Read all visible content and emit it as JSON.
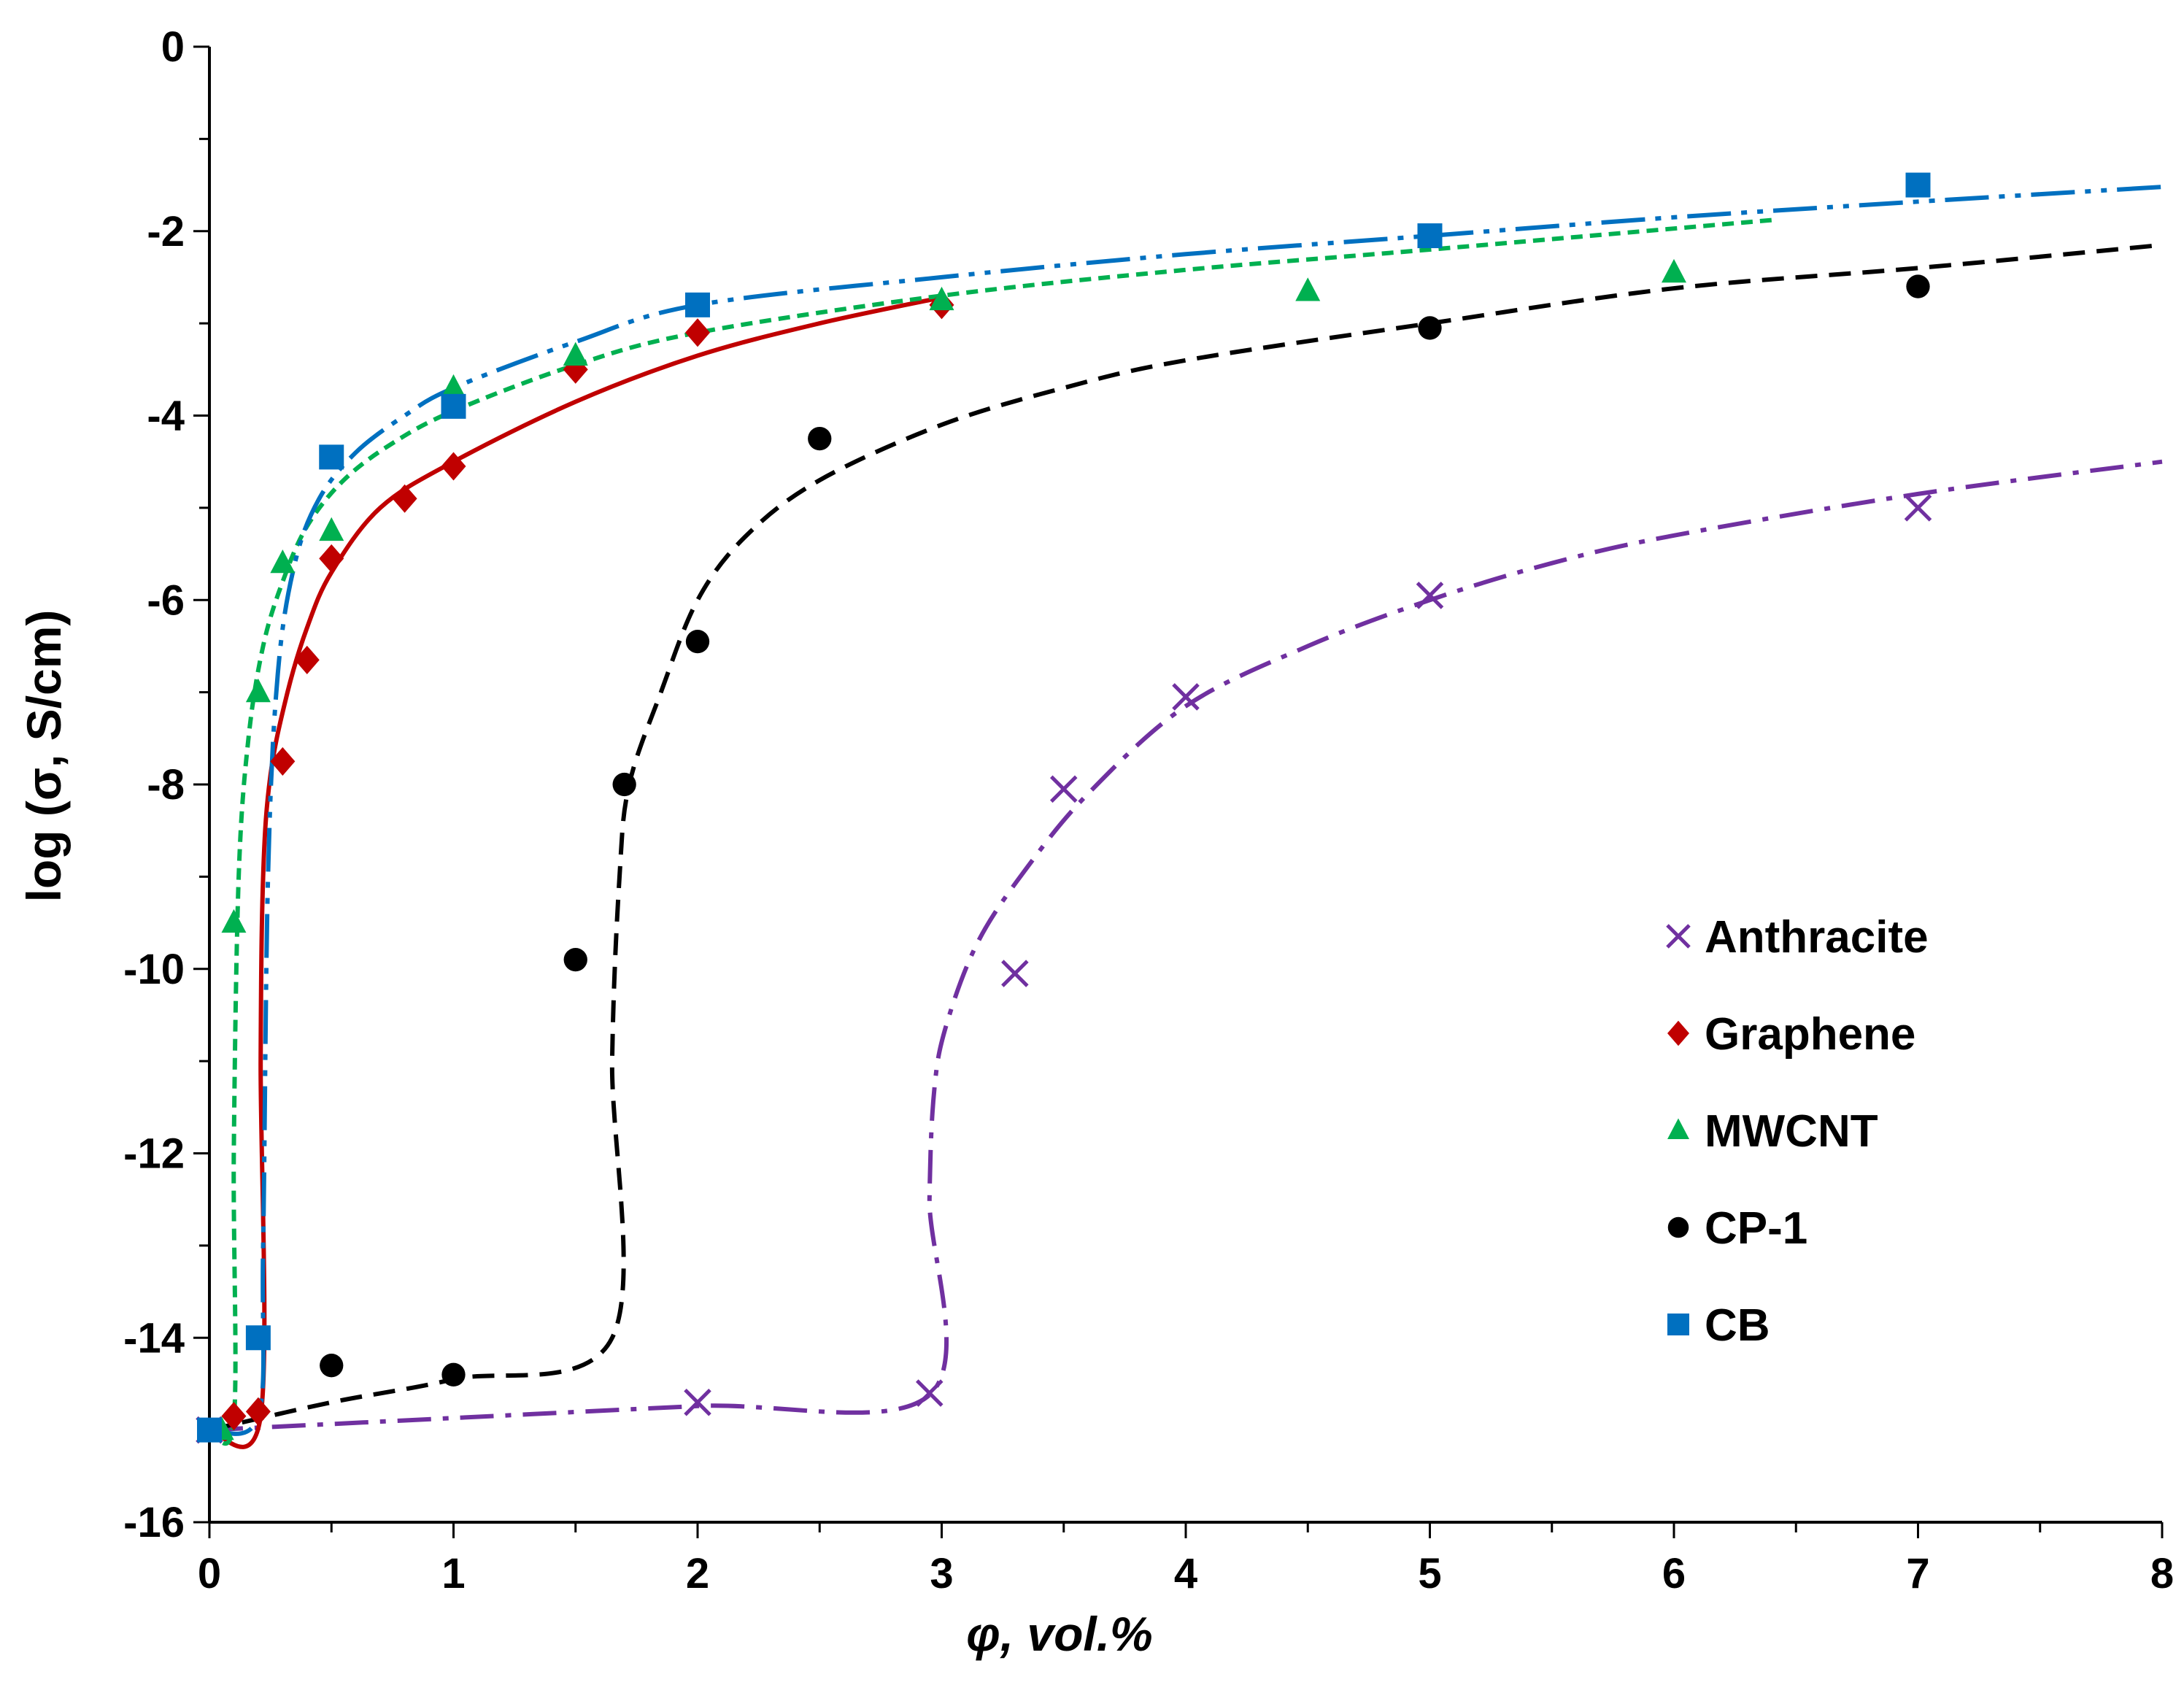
{
  "chart_data": {
    "type": "scatter",
    "title": "",
    "xlabel": "φ, vol.%",
    "ylabel": "log (σ, S/cm)",
    "xlim": [
      0,
      8
    ],
    "ylim": [
      -16,
      0
    ],
    "x_ticks": [
      "0",
      "1",
      "2",
      "3",
      "4",
      "5",
      "6",
      "7",
      "8"
    ],
    "y_ticks": [
      "0",
      "-2",
      "-4",
      "-6",
      "-8",
      "-10",
      "-12",
      "-14",
      "-16"
    ],
    "grid": false,
    "legend_position": "right-middle",
    "series": [
      {
        "name": "Anthracite",
        "marker": "x",
        "color": "#7030A0",
        "line_style": "dash-dot",
        "points": [
          [
            0,
            -15.0
          ],
          [
            2,
            -14.7
          ],
          [
            2.95,
            -14.6
          ],
          [
            3.3,
            -10.05
          ],
          [
            3.5,
            -8.05
          ],
          [
            4,
            -7.05
          ],
          [
            5,
            -5.95
          ],
          [
            7,
            -5.0
          ]
        ],
        "fit": [
          [
            0,
            -15.0
          ],
          [
            1,
            -14.87
          ],
          [
            2,
            -14.74
          ],
          [
            2.95,
            -14.62
          ],
          [
            2.95,
            -12.5
          ],
          [
            2.97,
            -11.3
          ],
          [
            3.02,
            -10.6
          ],
          [
            3.15,
            -9.7
          ],
          [
            3.35,
            -8.9
          ],
          [
            3.6,
            -8.1
          ],
          [
            4,
            -7.15
          ],
          [
            4.5,
            -6.5
          ],
          [
            5,
            -6.0
          ],
          [
            5.5,
            -5.6
          ],
          [
            6,
            -5.3
          ],
          [
            7,
            -4.85
          ],
          [
            8,
            -4.5
          ]
        ]
      },
      {
        "name": "Graphene",
        "marker": "diamond",
        "color": "#C00000",
        "line_style": "solid",
        "points": [
          [
            0.1,
            -14.85
          ],
          [
            0.2,
            -14.8
          ],
          [
            0.3,
            -7.75
          ],
          [
            0.4,
            -6.65
          ],
          [
            0.5,
            -5.55
          ],
          [
            0.8,
            -4.9
          ],
          [
            1,
            -4.55
          ],
          [
            1.5,
            -3.5
          ],
          [
            2,
            -3.1
          ],
          [
            3,
            -2.8
          ]
        ],
        "fit": [
          [
            0,
            -15.0
          ],
          [
            0.21,
            -14.85
          ],
          [
            0.21,
            -11.0
          ],
          [
            0.22,
            -9.0
          ],
          [
            0.25,
            -7.9
          ],
          [
            0.32,
            -7.0
          ],
          [
            0.4,
            -6.3
          ],
          [
            0.5,
            -5.7
          ],
          [
            0.7,
            -5.0
          ],
          [
            1,
            -4.5
          ],
          [
            1.5,
            -3.85
          ],
          [
            2,
            -3.35
          ],
          [
            2.5,
            -3.0
          ],
          [
            3,
            -2.72
          ]
        ]
      },
      {
        "name": "MWCNT",
        "marker": "triangle",
        "color": "#00B050",
        "line_style": "short-dash",
        "points": [
          [
            0.05,
            -15.0
          ],
          [
            0.1,
            -9.5
          ],
          [
            0.2,
            -7.0
          ],
          [
            0.3,
            -5.6
          ],
          [
            0.5,
            -5.25
          ],
          [
            1,
            -3.7
          ],
          [
            1.5,
            -3.35
          ],
          [
            3,
            -2.75
          ],
          [
            4.5,
            -2.65
          ],
          [
            6,
            -2.45
          ]
        ],
        "fit": [
          [
            0,
            -15.0
          ],
          [
            0.1,
            -14.9
          ],
          [
            0.1,
            -12.0
          ],
          [
            0.12,
            -9.0
          ],
          [
            0.16,
            -7.5
          ],
          [
            0.22,
            -6.5
          ],
          [
            0.3,
            -5.8
          ],
          [
            0.4,
            -5.2
          ],
          [
            0.55,
            -4.7
          ],
          [
            0.75,
            -4.3
          ],
          [
            1,
            -3.95
          ],
          [
            1.5,
            -3.45
          ],
          [
            2,
            -3.1
          ],
          [
            3,
            -2.7
          ],
          [
            4,
            -2.42
          ],
          [
            5,
            -2.2
          ],
          [
            6.4,
            -1.88
          ]
        ]
      },
      {
        "name": "CP-1",
        "marker": "circle",
        "color": "#000000",
        "line_style": "dash",
        "points": [
          [
            0.5,
            -14.3
          ],
          [
            1,
            -14.4
          ],
          [
            1.5,
            -9.9
          ],
          [
            1.7,
            -8.0
          ],
          [
            2,
            -6.45
          ],
          [
            2.5,
            -4.25
          ],
          [
            5,
            -3.05
          ],
          [
            7,
            -2.6
          ]
        ],
        "fit": [
          [
            0,
            -15.0
          ],
          [
            0.5,
            -14.7
          ],
          [
            1,
            -14.45
          ],
          [
            1.65,
            -14.0
          ],
          [
            1.65,
            -11.0
          ],
          [
            1.68,
            -9.0
          ],
          [
            1.72,
            -8.0
          ],
          [
            1.85,
            -7.0
          ],
          [
            2,
            -6.0
          ],
          [
            2.2,
            -5.3
          ],
          [
            2.5,
            -4.7
          ],
          [
            3,
            -4.1
          ],
          [
            3.5,
            -3.7
          ],
          [
            4,
            -3.4
          ],
          [
            5,
            -3.0
          ],
          [
            6,
            -2.62
          ],
          [
            7,
            -2.4
          ],
          [
            8,
            -2.15
          ]
        ]
      },
      {
        "name": "CB",
        "marker": "square",
        "color": "#0070C0",
        "line_style": "dash-dot-dot",
        "points": [
          [
            0,
            -15.0
          ],
          [
            0.2,
            -14.0
          ],
          [
            0.5,
            -4.45
          ],
          [
            1,
            -3.9
          ],
          [
            2,
            -2.8
          ],
          [
            5,
            -2.05
          ],
          [
            7,
            -1.5
          ]
        ],
        "fit": [
          [
            0,
            -15.0
          ],
          [
            0.2,
            -14.85
          ],
          [
            0.22,
            -13.0
          ],
          [
            0.24,
            -9.0
          ],
          [
            0.28,
            -6.8
          ],
          [
            0.35,
            -5.6
          ],
          [
            0.45,
            -4.9
          ],
          [
            0.6,
            -4.4
          ],
          [
            0.8,
            -4.0
          ],
          [
            1,
            -3.7
          ],
          [
            1.5,
            -3.2
          ],
          [
            2,
            -2.8
          ],
          [
            3,
            -2.5
          ],
          [
            4,
            -2.25
          ],
          [
            5,
            -2.05
          ],
          [
            6,
            -1.85
          ],
          [
            7,
            -1.68
          ],
          [
            8,
            -1.52
          ]
        ]
      }
    ]
  }
}
